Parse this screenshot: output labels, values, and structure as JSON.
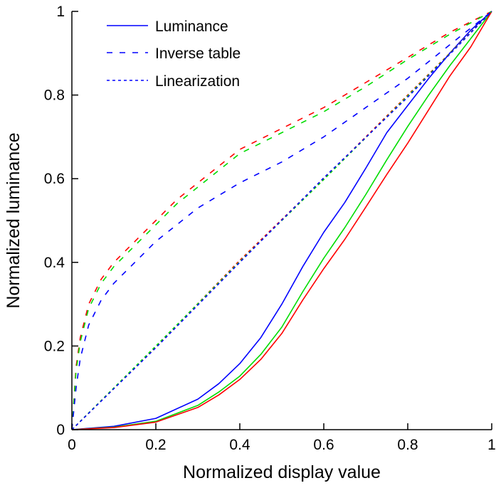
{
  "chart_data": {
    "type": "line",
    "title": "",
    "xlabel": "Normalized display value",
    "ylabel": "Normalized luminance",
    "xlim": [
      0,
      1
    ],
    "ylim": [
      0,
      1
    ],
    "x_ticks": [
      0,
      0.2,
      0.4,
      0.6,
      0.8,
      1
    ],
    "y_ticks": [
      0,
      0.2,
      0.4,
      0.6,
      0.8,
      1
    ],
    "x_tick_labels": [
      "0",
      "0.2",
      "0.4",
      "0.6",
      "0.8",
      "1"
    ],
    "y_tick_labels": [
      "0",
      "0.2",
      "0.4",
      "0.6",
      "0.8",
      "1"
    ],
    "grid": false,
    "legend": {
      "position": "top-left",
      "entries": [
        {
          "label": "Luminance",
          "style": "solid",
          "color": "#0000ff"
        },
        {
          "label": "Inverse table",
          "style": "dashed",
          "color": "#0000ff"
        },
        {
          "label": "Linearization",
          "style": "dotted",
          "color": "#0000ff"
        }
      ]
    },
    "series": [
      {
        "group": "Luminance",
        "color": "#0000ff",
        "style": "solid",
        "x": [
          0,
          0.1,
          0.2,
          0.3,
          0.35,
          0.4,
          0.45,
          0.5,
          0.55,
          0.6,
          0.65,
          0.7,
          0.75,
          0.8,
          0.85,
          0.9,
          0.95,
          1.0
        ],
        "y": [
          0,
          0.008,
          0.027,
          0.073,
          0.11,
          0.158,
          0.22,
          0.3,
          0.39,
          0.472,
          0.543,
          0.625,
          0.71,
          0.775,
          0.84,
          0.9,
          0.955,
          1.0
        ]
      },
      {
        "group": "Luminance",
        "color": "#00dd00",
        "style": "solid",
        "x": [
          0,
          0.1,
          0.2,
          0.3,
          0.35,
          0.4,
          0.45,
          0.5,
          0.55,
          0.6,
          0.65,
          0.7,
          0.75,
          0.8,
          0.85,
          0.9,
          0.95,
          1.0
        ],
        "y": [
          0,
          0.006,
          0.02,
          0.058,
          0.09,
          0.128,
          0.18,
          0.245,
          0.33,
          0.41,
          0.483,
          0.562,
          0.645,
          0.725,
          0.8,
          0.87,
          0.935,
          1.0
        ]
      },
      {
        "group": "Luminance",
        "color": "#ff0000",
        "style": "solid",
        "x": [
          0,
          0.1,
          0.2,
          0.3,
          0.35,
          0.4,
          0.45,
          0.5,
          0.55,
          0.6,
          0.65,
          0.7,
          0.75,
          0.8,
          0.85,
          0.9,
          0.95,
          1.0
        ],
        "y": [
          0,
          0.005,
          0.018,
          0.053,
          0.083,
          0.12,
          0.168,
          0.23,
          0.31,
          0.385,
          0.455,
          0.532,
          0.61,
          0.685,
          0.765,
          0.845,
          0.915,
          1.0
        ]
      },
      {
        "group": "Inverse table",
        "color": "#ff0000",
        "style": "dashed",
        "x": [
          0,
          0.01,
          0.02,
          0.04,
          0.07,
          0.1,
          0.15,
          0.2,
          0.25,
          0.3,
          0.4,
          0.5,
          0.6,
          0.7,
          0.8,
          0.9,
          1.0
        ],
        "y": [
          0,
          0.15,
          0.22,
          0.3,
          0.36,
          0.4,
          0.45,
          0.5,
          0.55,
          0.59,
          0.67,
          0.72,
          0.77,
          0.83,
          0.89,
          0.95,
          1.0
        ]
      },
      {
        "group": "Inverse table",
        "color": "#00dd00",
        "style": "dashed",
        "x": [
          0,
          0.01,
          0.02,
          0.04,
          0.07,
          0.1,
          0.15,
          0.2,
          0.25,
          0.3,
          0.4,
          0.5,
          0.6,
          0.7,
          0.8,
          0.9,
          1.0
        ],
        "y": [
          0,
          0.14,
          0.21,
          0.29,
          0.35,
          0.39,
          0.44,
          0.49,
          0.54,
          0.58,
          0.66,
          0.71,
          0.76,
          0.82,
          0.885,
          0.945,
          1.0
        ]
      },
      {
        "group": "Inverse table",
        "color": "#0000ff",
        "style": "dashed",
        "x": [
          0,
          0.01,
          0.02,
          0.04,
          0.07,
          0.1,
          0.15,
          0.2,
          0.25,
          0.3,
          0.4,
          0.5,
          0.6,
          0.7,
          0.8,
          0.9,
          1.0
        ],
        "y": [
          0,
          0.1,
          0.17,
          0.25,
          0.31,
          0.35,
          0.4,
          0.45,
          0.49,
          0.53,
          0.59,
          0.64,
          0.7,
          0.77,
          0.84,
          0.92,
          1.0
        ]
      },
      {
        "group": "Linearization",
        "color": "#ff0000",
        "style": "dotted",
        "x": [
          0,
          0.2,
          0.4,
          0.6,
          0.8,
          1.0
        ],
        "y": [
          0,
          0.198,
          0.405,
          0.6,
          0.8,
          1.0
        ]
      },
      {
        "group": "Linearization",
        "color": "#00dd00",
        "style": "dotted",
        "x": [
          0,
          0.2,
          0.4,
          0.6,
          0.8,
          1.0
        ],
        "y": [
          0,
          0.2,
          0.402,
          0.598,
          0.798,
          1.0
        ]
      },
      {
        "group": "Linearization",
        "color": "#0000ff",
        "style": "dotted",
        "x": [
          0,
          0.2,
          0.4,
          0.6,
          0.8,
          1.0
        ],
        "y": [
          0,
          0.196,
          0.4,
          0.602,
          0.795,
          1.0
        ]
      }
    ]
  }
}
